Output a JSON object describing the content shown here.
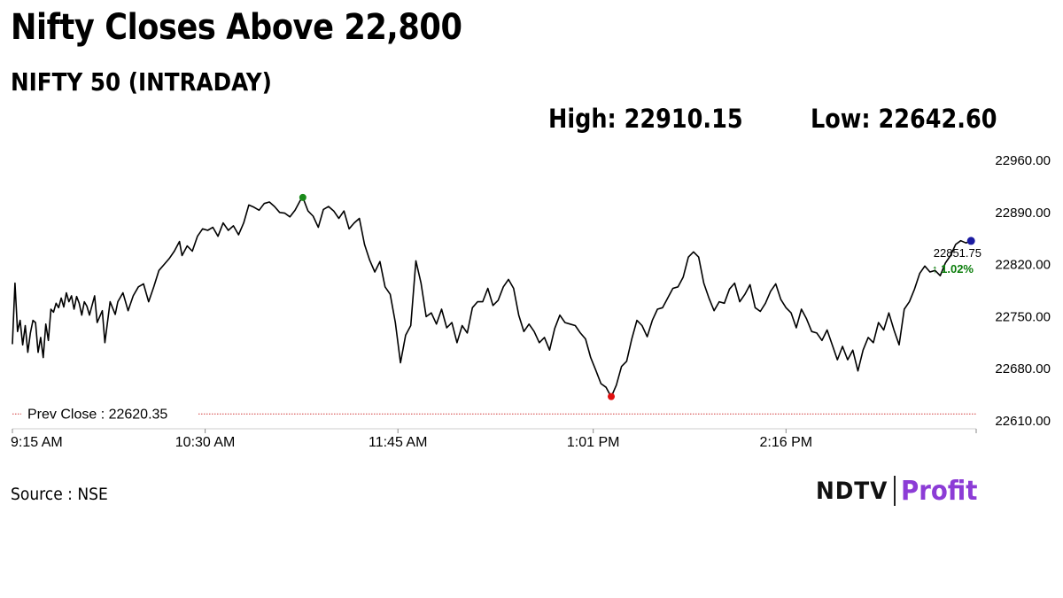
{
  "header": {
    "title": "Nifty Closes Above 22,800",
    "subtitle": "NIFTY 50 (INTRADAY)",
    "high_label": "High: 22910.15",
    "low_label": "Low: 22642.60"
  },
  "footer": {
    "source": "Source : NSE",
    "logo_left": "NDTV",
    "logo_right": "Profit"
  },
  "colors": {
    "line": "#000000",
    "high_marker": "#1a8a1a",
    "low_marker": "#e01010",
    "last_marker": "#1a1aa0",
    "prev_close": "#d23c3c",
    "positive": "#0a7d0a",
    "brand_profit": "#8c3cd6"
  },
  "chart_data": {
    "type": "line",
    "title": "NIFTY 50 (INTRADAY)",
    "ylim": [
      22610,
      22960
    ],
    "y_ticks": [
      "22960.00",
      "22890.00",
      "22820.00",
      "22750.00",
      "22680.00",
      "22610.00"
    ],
    "y_tick_values": [
      22960,
      22890,
      22820,
      22750,
      22680,
      22610
    ],
    "x_ticks": [
      "9:15 AM",
      "10:30 AM",
      "11:45 AM",
      "1:01 PM",
      "2:16 PM"
    ],
    "x_tick_minutes": [
      0,
      75,
      150,
      226,
      301
    ],
    "x_range_minutes": [
      0,
      375
    ],
    "prev_close": {
      "label": "Prev Close : 22620.35",
      "value": 22620.35
    },
    "high": {
      "value": 22910.15,
      "minute": 113
    },
    "low": {
      "value": 22642.6,
      "minute": 233
    },
    "last": {
      "value": 22851.75,
      "change": "↑ 1.02%",
      "value_label": "22851.75",
      "minute": 373
    },
    "series": [
      {
        "x": [
          0,
          1,
          2,
          3,
          4,
          5,
          6,
          7,
          8,
          9,
          10,
          11,
          12,
          13,
          14,
          15,
          16,
          17,
          18,
          19,
          20,
          21,
          22,
          23,
          24,
          25,
          26,
          27,
          28,
          29,
          30,
          32,
          33,
          35,
          36,
          38,
          40,
          41,
          43,
          45,
          47,
          49,
          51,
          53,
          55,
          57,
          59,
          61,
          63,
          65,
          66,
          68,
          70,
          72,
          74,
          76,
          78,
          80,
          82,
          84,
          86,
          88,
          90,
          92,
          94,
          96,
          98,
          100,
          102,
          104,
          106,
          108,
          110,
          112,
          113,
          115,
          117,
          119,
          121,
          123,
          125,
          127,
          129,
          131,
          133,
          135,
          137,
          139,
          141,
          143,
          145,
          147,
          149,
          151,
          153,
          155,
          157,
          159,
          161,
          163,
          165,
          167,
          169,
          171,
          173,
          175,
          177,
          179,
          181,
          183,
          185,
          187,
          189,
          191,
          193,
          195,
          197,
          199,
          201,
          203,
          205,
          207,
          209,
          211,
          213,
          215,
          217,
          219,
          221,
          223,
          225,
          227,
          229,
          231,
          233,
          235,
          237,
          239,
          241,
          243,
          245,
          247,
          249,
          251,
          253,
          255,
          257,
          259,
          261,
          263,
          265,
          267,
          269,
          271,
          273,
          275,
          277,
          279,
          281,
          283,
          285,
          287,
          289,
          291,
          293,
          295,
          297,
          299,
          301,
          303,
          305,
          307,
          309,
          311,
          313,
          315,
          317,
          319,
          321,
          323,
          325,
          327,
          329,
          331,
          333,
          335,
          337,
          339,
          341,
          343,
          345,
          347,
          349,
          351,
          353,
          355,
          357,
          359,
          361,
          363,
          365,
          367,
          369,
          371,
          373
        ],
        "values": [
          22713,
          22795,
          22730,
          22745,
          22712,
          22738,
          22702,
          22728,
          22745,
          22742,
          22702,
          22722,
          22695,
          22740,
          22718,
          22760,
          22756,
          22768,
          22762,
          22775,
          22763,
          22782,
          22770,
          22778,
          22760,
          22777,
          22768,
          22752,
          22770,
          22764,
          22752,
          22778,
          22742,
          22758,
          22715,
          22770,
          22753,
          22770,
          22782,
          22758,
          22778,
          22790,
          22794,
          22770,
          22790,
          22812,
          22820,
          22828,
          22838,
          22851,
          22832,
          22845,
          22838,
          22858,
          22868,
          22866,
          22870,
          22858,
          22876,
          22866,
          22872,
          22860,
          22876,
          22900,
          22897,
          22893,
          22902,
          22904,
          22898,
          22890,
          22889,
          22884,
          22893,
          22906,
          22910,
          22892,
          22885,
          22870,
          22894,
          22898,
          22892,
          22882,
          22892,
          22868,
          22876,
          22882,
          22847,
          22826,
          22810,
          22824,
          22790,
          22780,
          22742,
          22688,
          22725,
          22738,
          22825,
          22795,
          22750,
          22755,
          22740,
          22760,
          22735,
          22742,
          22715,
          22738,
          22728,
          22762,
          22770,
          22770,
          22788,
          22765,
          22772,
          22790,
          22800,
          22788,
          22752,
          22730,
          22740,
          22730,
          22715,
          22722,
          22705,
          22734,
          22752,
          22742,
          22740,
          22738,
          22728,
          22720,
          22695,
          22678,
          22660,
          22655,
          22642,
          22658,
          22683,
          22690,
          22720,
          22745,
          22738,
          22723,
          22745,
          22760,
          22762,
          22775,
          22788,
          22790,
          22803,
          22830,
          22837,
          22830,
          22795,
          22775,
          22758,
          22770,
          22768,
          22787,
          22795,
          22770,
          22780,
          22793,
          22762,
          22757,
          22768,
          22784,
          22794,
          22773,
          22762,
          22755,
          22735,
          22760,
          22747,
          22730,
          22728,
          22718,
          22732,
          22712,
          22692,
          22710,
          22692,
          22705,
          22677,
          22705,
          22722,
          22715,
          22742,
          22732,
          22755,
          22732,
          22712,
          22760,
          22770,
          22787,
          22808,
          22818,
          22810,
          22812,
          22805,
          22822,
          22832,
          22847,
          22852,
          22849,
          22851.75
        ]
      }
    ]
  }
}
